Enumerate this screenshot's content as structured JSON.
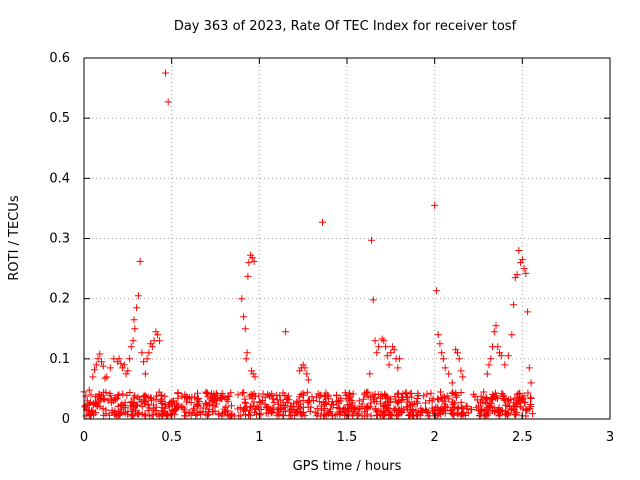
{
  "chart_data": {
    "type": "scatter",
    "title": "Day 363 of 2023, Rate Of TEC Index for receiver tosf",
    "xlabel": "GPS time / hours",
    "ylabel": "ROTI / TECUs",
    "xlim": [
      0,
      3
    ],
    "ylim": [
      0,
      0.6
    ],
    "x_ticks": [
      0,
      0.5,
      1,
      1.5,
      2,
      2.5,
      3
    ],
    "x_tick_labels": [
      "0",
      "0.5",
      "1",
      "1.5",
      "2",
      "2.5",
      "3"
    ],
    "y_ticks": [
      0,
      0.1,
      0.2,
      0.3,
      0.4,
      0.5,
      0.6
    ],
    "y_tick_labels": [
      "0",
      "0.1",
      "0.2",
      "0.3",
      "0.4",
      "0.5",
      "0.6"
    ],
    "grid": true,
    "marker": "+",
    "color": "#ff0000",
    "series": [
      {
        "values": [
          [
            0.0,
            0.045
          ],
          [
            0.01,
            0.038
          ],
          [
            0.02,
            0.03
          ],
          [
            0.03,
            0.048
          ],
          [
            0.04,
            0.04
          ],
          [
            0.05,
            0.07
          ],
          [
            0.06,
            0.082
          ],
          [
            0.07,
            0.09
          ],
          [
            0.08,
            0.1
          ],
          [
            0.09,
            0.108
          ],
          [
            0.1,
            0.095
          ],
          [
            0.11,
            0.088
          ],
          [
            0.12,
            0.068
          ],
          [
            0.13,
            0.07
          ],
          [
            0.15,
            0.085
          ],
          [
            0.17,
            0.1
          ],
          [
            0.19,
            0.095
          ],
          [
            0.2,
            0.1
          ],
          [
            0.21,
            0.092
          ],
          [
            0.22,
            0.085
          ],
          [
            0.23,
            0.09
          ],
          [
            0.24,
            0.075
          ],
          [
            0.25,
            0.08
          ],
          [
            0.26,
            0.1
          ],
          [
            0.27,
            0.12
          ],
          [
            0.28,
            0.13
          ],
          [
            0.285,
            0.165
          ],
          [
            0.29,
            0.15
          ],
          [
            0.3,
            0.185
          ],
          [
            0.31,
            0.205
          ],
          [
            0.32,
            0.262
          ],
          [
            0.33,
            0.11
          ],
          [
            0.34,
            0.095
          ],
          [
            0.35,
            0.075
          ],
          [
            0.36,
            0.1
          ],
          [
            0.37,
            0.11
          ],
          [
            0.38,
            0.125
          ],
          [
            0.39,
            0.12
          ],
          [
            0.4,
            0.13
          ],
          [
            0.41,
            0.145
          ],
          [
            0.42,
            0.14
          ],
          [
            0.43,
            0.13
          ],
          [
            0.465,
            0.575
          ],
          [
            0.48,
            0.527
          ],
          [
            0.9,
            0.2
          ],
          [
            0.91,
            0.17
          ],
          [
            0.92,
            0.15
          ],
          [
            0.925,
            0.1
          ],
          [
            0.93,
            0.11
          ],
          [
            0.935,
            0.237
          ],
          [
            0.94,
            0.26
          ],
          [
            0.95,
            0.272
          ],
          [
            0.96,
            0.268
          ],
          [
            0.97,
            0.262
          ],
          [
            0.955,
            0.08
          ],
          [
            0.965,
            0.075
          ],
          [
            0.975,
            0.07
          ],
          [
            1.15,
            0.145
          ],
          [
            1.23,
            0.08
          ],
          [
            1.24,
            0.085
          ],
          [
            1.25,
            0.09
          ],
          [
            1.26,
            0.085
          ],
          [
            1.27,
            0.075
          ],
          [
            1.28,
            0.065
          ],
          [
            1.36,
            0.327
          ],
          [
            1.63,
            0.075
          ],
          [
            1.64,
            0.297
          ],
          [
            1.65,
            0.198
          ],
          [
            1.66,
            0.13
          ],
          [
            1.67,
            0.11
          ],
          [
            1.68,
            0.12
          ],
          [
            1.7,
            0.133
          ],
          [
            1.71,
            0.13
          ],
          [
            1.72,
            0.12
          ],
          [
            1.73,
            0.105
          ],
          [
            1.74,
            0.09
          ],
          [
            1.75,
            0.11
          ],
          [
            1.76,
            0.12
          ],
          [
            1.77,
            0.115
          ],
          [
            1.78,
            0.1
          ],
          [
            1.79,
            0.085
          ],
          [
            1.8,
            0.1
          ],
          [
            2.0,
            0.355
          ],
          [
            2.01,
            0.213
          ],
          [
            2.02,
            0.14
          ],
          [
            2.03,
            0.125
          ],
          [
            2.04,
            0.11
          ],
          [
            2.05,
            0.1
          ],
          [
            2.06,
            0.085
          ],
          [
            2.08,
            0.075
          ],
          [
            2.1,
            0.06
          ],
          [
            2.12,
            0.115
          ],
          [
            2.13,
            0.11
          ],
          [
            2.14,
            0.1
          ],
          [
            2.15,
            0.08
          ],
          [
            2.16,
            0.07
          ],
          [
            2.3,
            0.075
          ],
          [
            2.31,
            0.09
          ],
          [
            2.32,
            0.1
          ],
          [
            2.33,
            0.12
          ],
          [
            2.34,
            0.145
          ],
          [
            2.35,
            0.155
          ],
          [
            2.36,
            0.12
          ],
          [
            2.37,
            0.11
          ],
          [
            2.38,
            0.105
          ],
          [
            2.4,
            0.09
          ],
          [
            2.42,
            0.105
          ],
          [
            2.44,
            0.14
          ],
          [
            2.45,
            0.19
          ],
          [
            2.46,
            0.235
          ],
          [
            2.47,
            0.24
          ],
          [
            2.48,
            0.28
          ],
          [
            2.49,
            0.26
          ],
          [
            2.5,
            0.265
          ],
          [
            2.51,
            0.25
          ],
          [
            2.52,
            0.242
          ],
          [
            2.53,
            0.178
          ],
          [
            2.54,
            0.085
          ],
          [
            2.55,
            0.06
          ]
        ]
      }
    ],
    "baseline_band": {
      "x_range": [
        0,
        2.56
      ],
      "y_range": [
        0.005,
        0.045
      ],
      "note_values": "dense cluster of ROTI values between ~0.01 and ~0.04 across full time span"
    }
  }
}
